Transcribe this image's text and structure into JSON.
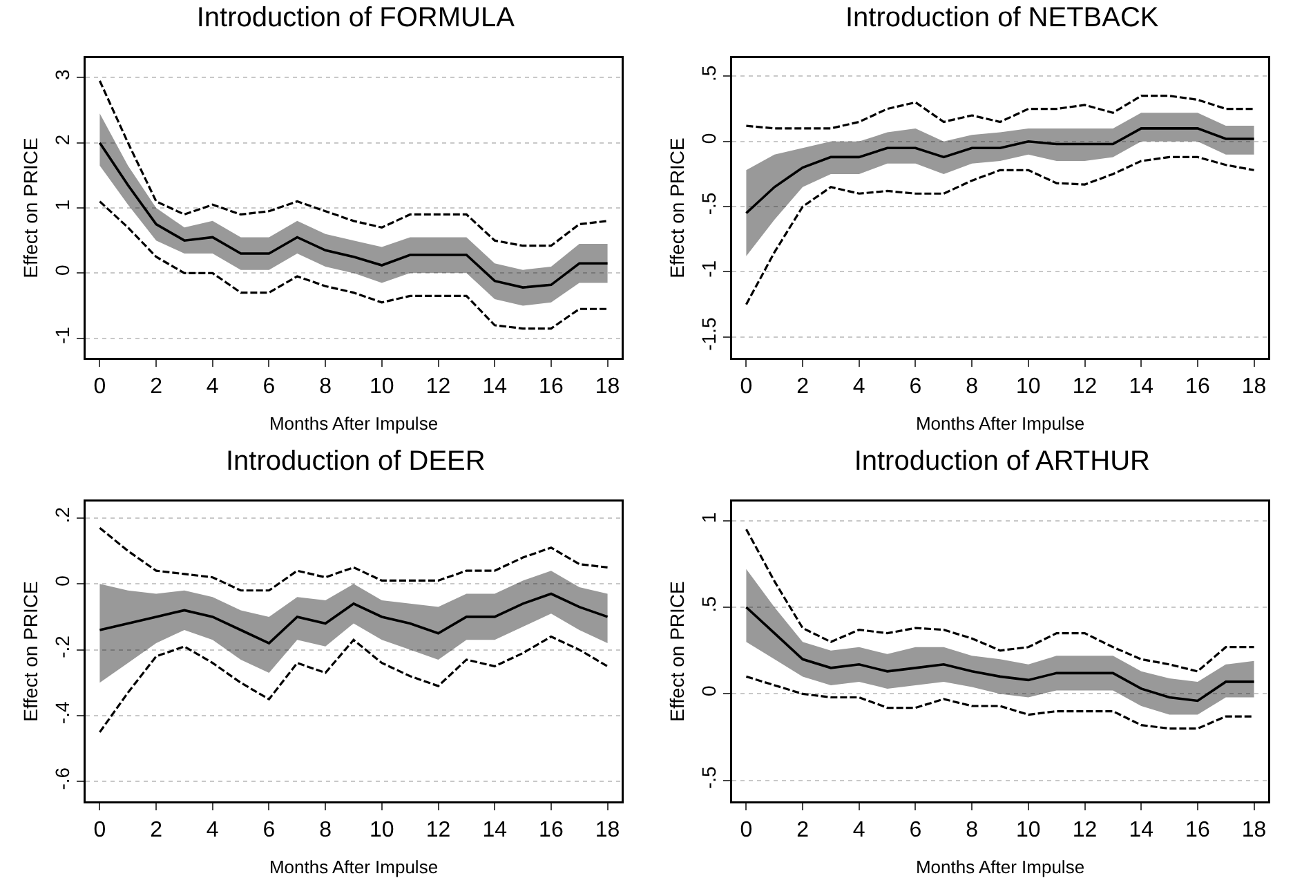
{
  "chart_data": [
    {
      "type": "line",
      "title": "Introduction of FORMULA",
      "xlabel": "Months After Impulse",
      "ylabel": "Effect on PRICE",
      "grid": "y",
      "x": [
        0,
        1,
        2,
        3,
        4,
        5,
        6,
        7,
        8,
        9,
        10,
        11,
        12,
        13,
        14,
        15,
        16,
        17,
        18
      ],
      "xlim": [
        -0.5,
        18.5
      ],
      "xticks": [
        0,
        2,
        4,
        6,
        8,
        10,
        12,
        14,
        16,
        18
      ],
      "ylim": [
        -1.3,
        3.3
      ],
      "yticks": [
        {
          "value": -1,
          "label": "-1"
        },
        0,
        1,
        2,
        3
      ],
      "series": [
        {
          "color": "#000000",
          "line_style": "solid",
          "values": [
            2.0,
            1.35,
            0.75,
            0.5,
            0.55,
            0.3,
            0.3,
            0.55,
            0.35,
            0.25,
            0.12,
            0.28,
            0.28,
            0.28,
            -0.12,
            -0.22,
            -0.18,
            0.15,
            0.15
          ],
          "lower": [
            1.65,
            1.05,
            0.5,
            0.3,
            0.3,
            0.05,
            0.05,
            0.3,
            0.1,
            0.0,
            -0.15,
            0.0,
            0.0,
            0.0,
            -0.4,
            -0.5,
            -0.45,
            -0.15,
            -0.15
          ],
          "upper": [
            2.45,
            1.65,
            1.0,
            0.7,
            0.8,
            0.55,
            0.55,
            0.8,
            0.6,
            0.5,
            0.4,
            0.55,
            0.55,
            0.55,
            0.15,
            0.05,
            0.1,
            0.45,
            0.45
          ]
        },
        {
          "color": "#000000",
          "line_style": "dashed",
          "values": [
            2.95,
            2.0,
            1.1,
            0.9,
            1.05,
            0.9,
            0.95,
            1.1,
            0.95,
            0.8,
            0.7,
            0.9,
            0.9,
            0.9,
            0.5,
            0.42,
            0.42,
            0.75,
            0.8
          ]
        },
        {
          "color": "#000000",
          "line_style": "dashed",
          "values": [
            1.1,
            0.7,
            0.25,
            0.0,
            0.0,
            -0.3,
            -0.3,
            -0.05,
            -0.2,
            -0.3,
            -0.45,
            -0.35,
            -0.35,
            -0.35,
            -0.8,
            -0.85,
            -0.85,
            -0.55,
            -0.55
          ]
        }
      ]
    },
    {
      "type": "line",
      "title": "Introduction of NETBACK",
      "xlabel": "Months After Impulse",
      "ylabel": "Effect on PRICE",
      "grid": "y",
      "x": [
        0,
        1,
        2,
        3,
        4,
        5,
        6,
        7,
        8,
        9,
        10,
        11,
        12,
        13,
        14,
        15,
        16,
        17,
        18
      ],
      "xlim": [
        -0.5,
        18.5
      ],
      "xticks": [
        0,
        2,
        4,
        6,
        8,
        10,
        12,
        14,
        16,
        18
      ],
      "ylim": [
        -1.66,
        0.64
      ],
      "yticks": [
        {
          "value": -1.5,
          "label": "-1.5"
        },
        {
          "value": -1,
          "label": "-1"
        },
        {
          "value": -0.5,
          "label": "-.5"
        },
        0,
        {
          "value": 0.5,
          "label": ".5"
        }
      ],
      "series": [
        {
          "color": "#000000",
          "line_style": "solid",
          "values": [
            -0.55,
            -0.35,
            -0.2,
            -0.12,
            -0.12,
            -0.05,
            -0.05,
            -0.12,
            -0.05,
            -0.05,
            0.0,
            -0.02,
            -0.02,
            -0.02,
            0.1,
            0.1,
            0.1,
            0.02,
            0.02
          ],
          "lower": [
            -0.88,
            -0.6,
            -0.35,
            -0.25,
            -0.25,
            -0.17,
            -0.17,
            -0.25,
            -0.17,
            -0.15,
            -0.1,
            -0.15,
            -0.15,
            -0.12,
            0.0,
            0.0,
            0.0,
            -0.1,
            -0.1
          ],
          "upper": [
            -0.22,
            -0.1,
            -0.05,
            0.0,
            0.0,
            0.07,
            0.1,
            0.0,
            0.05,
            0.07,
            0.1,
            0.1,
            0.1,
            0.1,
            0.22,
            0.22,
            0.22,
            0.12,
            0.12
          ]
        },
        {
          "color": "#000000",
          "line_style": "dashed",
          "values": [
            0.12,
            0.1,
            0.1,
            0.1,
            0.15,
            0.25,
            0.3,
            0.15,
            0.2,
            0.15,
            0.25,
            0.25,
            0.28,
            0.22,
            0.35,
            0.35,
            0.32,
            0.25,
            0.25
          ]
        },
        {
          "color": "#000000",
          "line_style": "dashed",
          "values": [
            -1.25,
            -0.85,
            -0.5,
            -0.35,
            -0.4,
            -0.38,
            -0.4,
            -0.4,
            -0.3,
            -0.22,
            -0.22,
            -0.32,
            -0.33,
            -0.25,
            -0.15,
            -0.12,
            -0.12,
            -0.18,
            -0.22
          ]
        }
      ]
    },
    {
      "type": "line",
      "title": "Introduction of DEER",
      "xlabel": "Months After Impulse",
      "ylabel": "Effect on PRICE",
      "grid": "y",
      "x": [
        0,
        1,
        2,
        3,
        4,
        5,
        6,
        7,
        8,
        9,
        10,
        11,
        12,
        13,
        14,
        15,
        16,
        17,
        18
      ],
      "xlim": [
        -0.5,
        18.5
      ],
      "xticks": [
        0,
        2,
        4,
        6,
        8,
        10,
        12,
        14,
        16,
        18
      ],
      "ylim": [
        -0.66,
        0.25
      ],
      "yticks": [
        {
          "value": -0.6,
          "label": "-.6"
        },
        {
          "value": -0.4,
          "label": "-.4"
        },
        {
          "value": -0.2,
          "label": "-.2"
        },
        0,
        {
          "value": 0.2,
          "label": ".2"
        }
      ],
      "series": [
        {
          "color": "#000000",
          "line_style": "solid",
          "values": [
            -0.14,
            -0.12,
            -0.1,
            -0.08,
            -0.1,
            -0.14,
            -0.18,
            -0.1,
            -0.12,
            -0.06,
            -0.1,
            -0.12,
            -0.15,
            -0.1,
            -0.1,
            -0.06,
            -0.03,
            -0.07,
            -0.1
          ],
          "lower": [
            -0.3,
            -0.24,
            -0.18,
            -0.14,
            -0.17,
            -0.23,
            -0.27,
            -0.17,
            -0.19,
            -0.12,
            -0.17,
            -0.2,
            -0.23,
            -0.17,
            -0.17,
            -0.13,
            -0.09,
            -0.14,
            -0.18
          ],
          "upper": [
            0.0,
            -0.02,
            -0.03,
            -0.02,
            -0.04,
            -0.08,
            -0.1,
            -0.04,
            -0.05,
            0.0,
            -0.05,
            -0.06,
            -0.07,
            -0.03,
            -0.03,
            0.01,
            0.04,
            -0.01,
            -0.03
          ]
        },
        {
          "color": "#000000",
          "line_style": "dashed",
          "values": [
            0.17,
            0.1,
            0.04,
            0.03,
            0.02,
            -0.02,
            -0.02,
            0.04,
            0.02,
            0.05,
            0.01,
            0.01,
            0.01,
            0.04,
            0.04,
            0.08,
            0.11,
            0.06,
            0.05
          ]
        },
        {
          "color": "#000000",
          "line_style": "dashed",
          "values": [
            -0.45,
            -0.33,
            -0.22,
            -0.19,
            -0.24,
            -0.3,
            -0.35,
            -0.24,
            -0.27,
            -0.17,
            -0.24,
            -0.28,
            -0.31,
            -0.23,
            -0.25,
            -0.21,
            -0.16,
            -0.2,
            -0.25
          ]
        }
      ]
    },
    {
      "type": "line",
      "title": "Introduction of ARTHUR",
      "xlabel": "Months After Impulse",
      "ylabel": "Effect on PRICE",
      "grid": "y",
      "x": [
        0,
        1,
        2,
        3,
        4,
        5,
        6,
        7,
        8,
        9,
        10,
        11,
        12,
        13,
        14,
        15,
        16,
        17,
        18
      ],
      "xlim": [
        -0.5,
        18.5
      ],
      "xticks": [
        0,
        2,
        4,
        6,
        8,
        10,
        12,
        14,
        16,
        18
      ],
      "ylim": [
        -0.62,
        1.11
      ],
      "yticks": [
        {
          "value": -0.5,
          "label": "-.5"
        },
        0,
        {
          "value": 0.5,
          "label": ".5"
        },
        1
      ],
      "series": [
        {
          "color": "#000000",
          "line_style": "solid",
          "values": [
            0.5,
            0.35,
            0.2,
            0.15,
            0.17,
            0.13,
            0.15,
            0.17,
            0.13,
            0.1,
            0.08,
            0.12,
            0.12,
            0.12,
            0.03,
            -0.02,
            -0.04,
            0.07,
            0.07
          ],
          "lower": [
            0.3,
            0.2,
            0.1,
            0.05,
            0.07,
            0.03,
            0.05,
            0.07,
            0.04,
            0.0,
            -0.02,
            0.02,
            0.02,
            0.02,
            -0.07,
            -0.12,
            -0.12,
            -0.02,
            -0.02
          ],
          "upper": [
            0.72,
            0.5,
            0.3,
            0.25,
            0.27,
            0.23,
            0.27,
            0.27,
            0.22,
            0.2,
            0.17,
            0.22,
            0.22,
            0.22,
            0.13,
            0.09,
            0.07,
            0.17,
            0.19
          ]
        },
        {
          "color": "#000000",
          "line_style": "dashed",
          "values": [
            0.95,
            0.65,
            0.38,
            0.3,
            0.37,
            0.35,
            0.38,
            0.37,
            0.32,
            0.25,
            0.27,
            0.35,
            0.35,
            0.27,
            0.2,
            0.17,
            0.13,
            0.27,
            0.27
          ]
        },
        {
          "color": "#000000",
          "line_style": "dashed",
          "values": [
            0.1,
            0.05,
            0.0,
            -0.02,
            -0.02,
            -0.08,
            -0.08,
            -0.03,
            -0.07,
            -0.07,
            -0.12,
            -0.1,
            -0.1,
            -0.1,
            -0.18,
            -0.2,
            -0.2,
            -0.13,
            -0.13
          ]
        }
      ]
    }
  ]
}
